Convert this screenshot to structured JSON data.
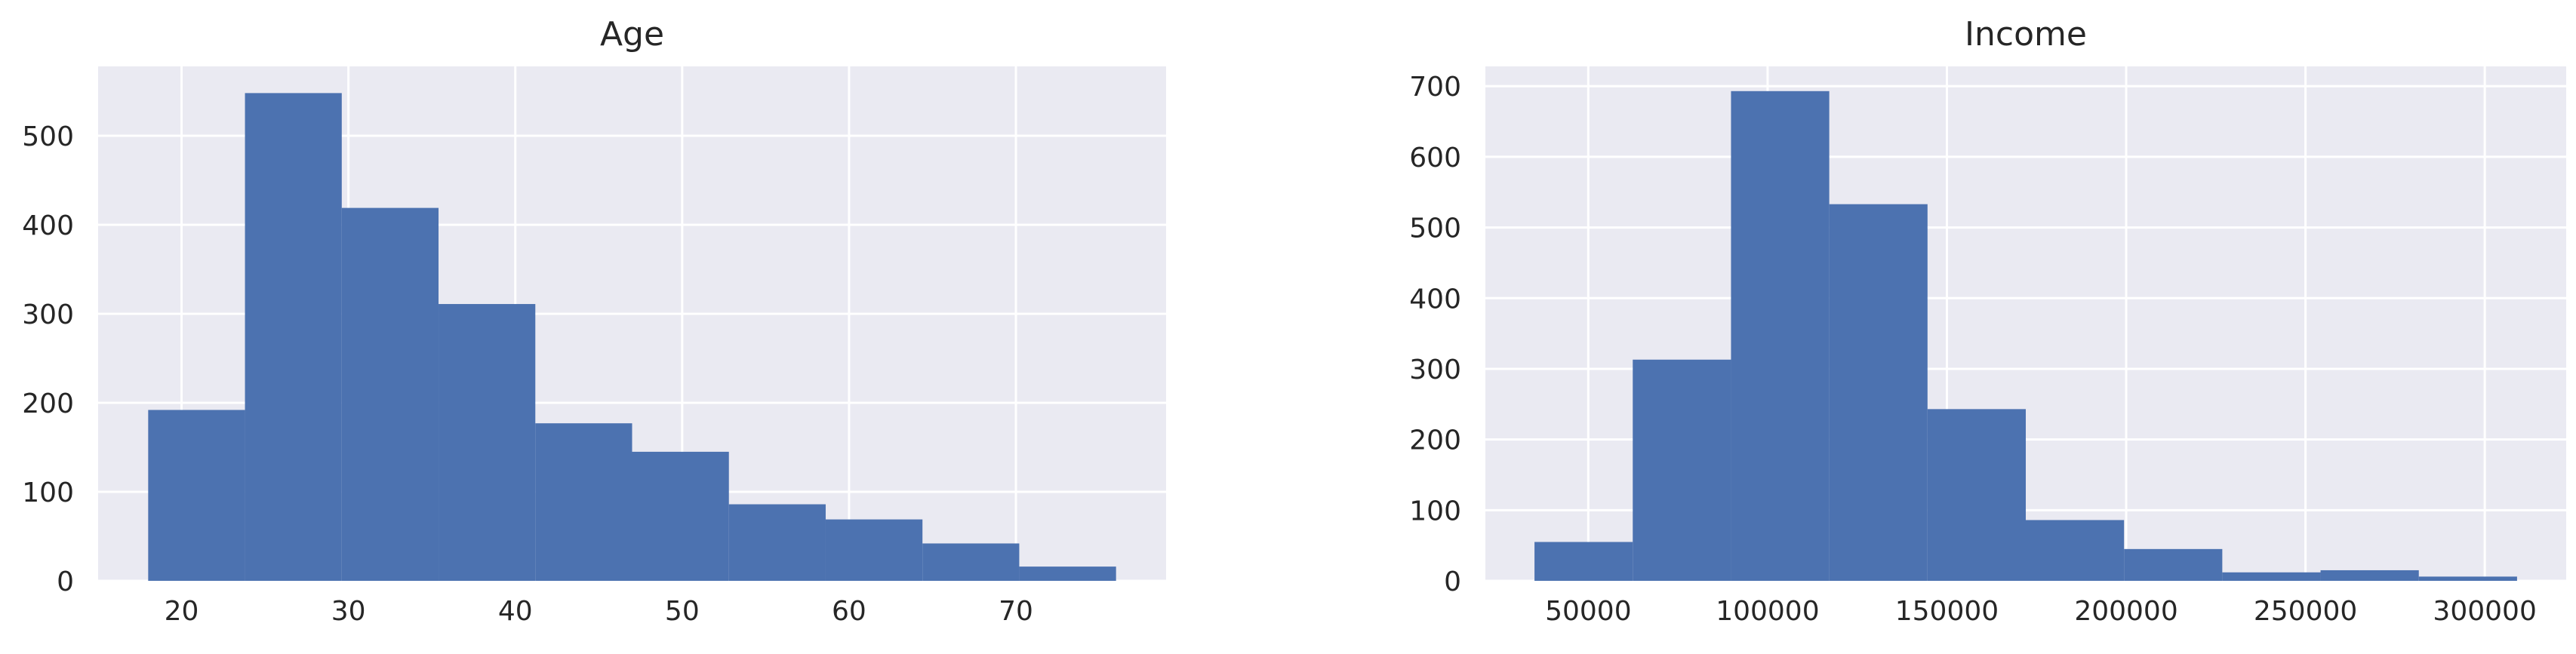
{
  "chart_data": [
    {
      "type": "bar",
      "title": "Age",
      "xlabel": "",
      "ylabel": "",
      "bin_edges": [
        18,
        23.8,
        29.6,
        35.4,
        41.2,
        47,
        52.8,
        58.6,
        64.4,
        70.2,
        76
      ],
      "values": [
        192,
        548,
        419,
        311,
        177,
        145,
        86,
        69,
        42,
        16
      ],
      "xlim": [
        15,
        79
      ],
      "ylim": [
        0,
        578
      ],
      "xticks": [
        20,
        30,
        40,
        50,
        60,
        70
      ],
      "yticks": [
        0,
        100,
        200,
        300,
        400,
        500
      ],
      "grid": true,
      "colors": {
        "bar": "#4c72b0",
        "background": "#eaeaf2",
        "grid": "#ffffff"
      }
    },
    {
      "type": "bar",
      "title": "Income",
      "xlabel": "",
      "ylabel": "",
      "bin_edges": [
        35000,
        62400,
        89800,
        117200,
        144600,
        172000,
        199400,
        226800,
        254200,
        281600,
        309000
      ],
      "values": [
        55,
        313,
        693,
        533,
        243,
        86,
        45,
        12,
        15,
        6
      ],
      "xlim": [
        21300,
        322700
      ],
      "ylim": [
        0,
        728
      ],
      "xticks": [
        50000,
        100000,
        150000,
        200000,
        250000,
        300000
      ],
      "yticks": [
        0,
        100,
        200,
        300,
        400,
        500,
        600,
        700
      ],
      "grid": true,
      "colors": {
        "bar": "#4c72b0",
        "background": "#eaeaf2",
        "grid": "#ffffff"
      }
    }
  ]
}
